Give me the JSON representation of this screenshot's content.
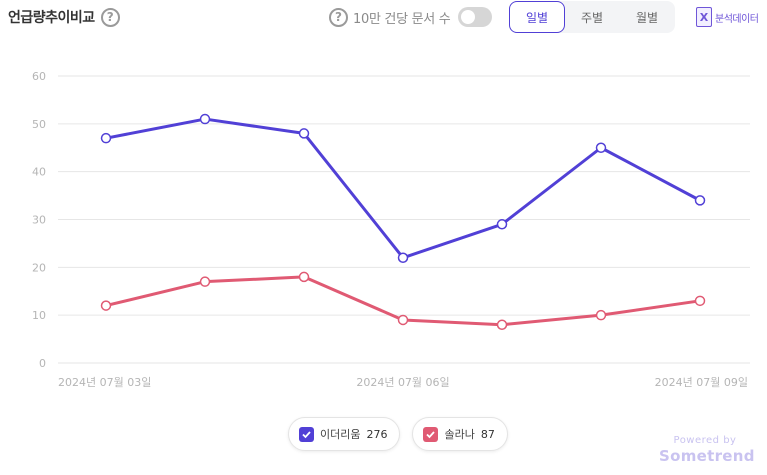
{
  "header": {
    "title": "언급량추이비교",
    "help_symbol": "?",
    "normalize_label": "10만 건당 문서 수",
    "normalize_on": false,
    "period_tabs": [
      {
        "label": "일별",
        "active": true
      },
      {
        "label": "주별",
        "active": false
      },
      {
        "label": "월별",
        "active": false
      }
    ],
    "export_icon_letter": "X",
    "export_label": "분석데이터"
  },
  "chart_data": {
    "type": "line",
    "x": [
      "2024-07-03",
      "2024-07-04",
      "2024-07-05",
      "2024-07-06",
      "2024-07-07",
      "2024-07-08",
      "2024-07-09"
    ],
    "x_tick_labels": [
      "2024년 07월 03일",
      "2024년 07월 06일",
      "2024년 07월 09일"
    ],
    "x_tick_indices": [
      0,
      3,
      6
    ],
    "ylim": [
      0,
      60
    ],
    "yticks": [
      0,
      10,
      20,
      30,
      40,
      50,
      60
    ],
    "grid": true,
    "legend_position": "bottom-center",
    "series": [
      {
        "name": "이더리움",
        "total": "276",
        "color": "#5140d6",
        "values": [
          47,
          51,
          48,
          22,
          29,
          45,
          34
        ]
      },
      {
        "name": "솔라나",
        "total": "87",
        "color": "#e05a73",
        "values": [
          12,
          17,
          18,
          9,
          8,
          10,
          13
        ]
      }
    ]
  },
  "footer": {
    "powered_by": "Powered by",
    "brand": "Sometrend"
  }
}
